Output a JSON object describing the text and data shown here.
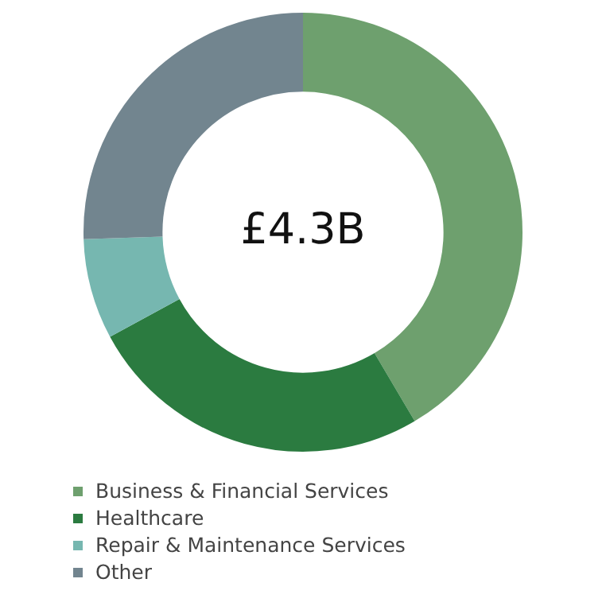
{
  "chart_data": {
    "type": "donut",
    "categories": [
      "Business & Financial Services",
      "Healthcare",
      "Repair & Maintenance Services",
      "Other"
    ],
    "values": [
      41.5,
      25.6,
      7.4,
      25.5
    ],
    "colors": [
      "#6ea06e",
      "#2b7b40",
      "#76b7b0",
      "#72858f"
    ],
    "annotations": [
      "£4.3B"
    ],
    "legend": "bottom left"
  }
}
